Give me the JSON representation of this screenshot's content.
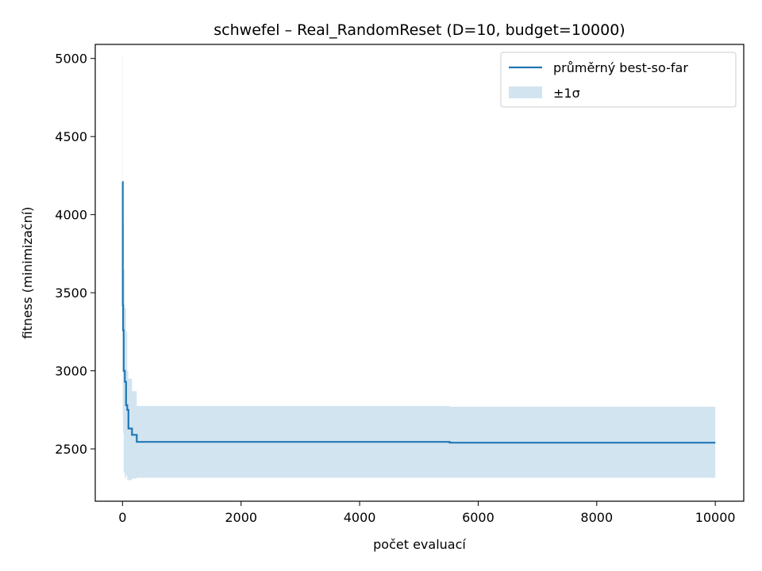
{
  "chart_data": {
    "type": "line",
    "title": "schwefel – Real_RandomReset (D=10, budget=10000)",
    "xlabel": "počet evaluací",
    "ylabel": "fitness (minimizační)",
    "xlim": [
      -460,
      10480
    ],
    "ylim": [
      2165,
      5090
    ],
    "xticks": [
      0,
      2000,
      4000,
      6000,
      8000,
      10000
    ],
    "yticks": [
      2500,
      3000,
      3500,
      4000,
      4500,
      5000
    ],
    "legend": {
      "position": "top-right",
      "entries": [
        {
          "key": "mean",
          "label": "průměrný best-so-far"
        },
        {
          "key": "band",
          "label": "±1σ"
        }
      ]
    },
    "colors": {
      "line": "#1f77b4",
      "band": "#1f77b4"
    },
    "series": [
      {
        "key": "mean",
        "label": "průměrný best-so-far",
        "step": true,
        "points": [
          [
            1,
            4210
          ],
          [
            5,
            3420
          ],
          [
            10,
            3260
          ],
          [
            20,
            3000
          ],
          [
            40,
            2930
          ],
          [
            60,
            2780
          ],
          [
            80,
            2750
          ],
          [
            100,
            2630
          ],
          [
            160,
            2590
          ],
          [
            240,
            2545
          ],
          [
            5520,
            2540
          ],
          [
            10000,
            2540
          ]
        ]
      }
    ],
    "band": {
      "key": "band",
      "label": "±1σ",
      "step": true,
      "points": [
        [
          1,
          3400,
          5020
        ],
        [
          5,
          2700,
          4150
        ],
        [
          10,
          2600,
          3950
        ],
        [
          20,
          2350,
          3650
        ],
        [
          40,
          2310,
          3400
        ],
        [
          60,
          2330,
          3250
        ],
        [
          80,
          2300,
          3000
        ],
        [
          100,
          2300,
          2950
        ],
        [
          160,
          2310,
          2870
        ],
        [
          240,
          2315,
          2775
        ],
        [
          5520,
          2315,
          2770
        ],
        [
          10000,
          2315,
          2770
        ]
      ]
    }
  }
}
